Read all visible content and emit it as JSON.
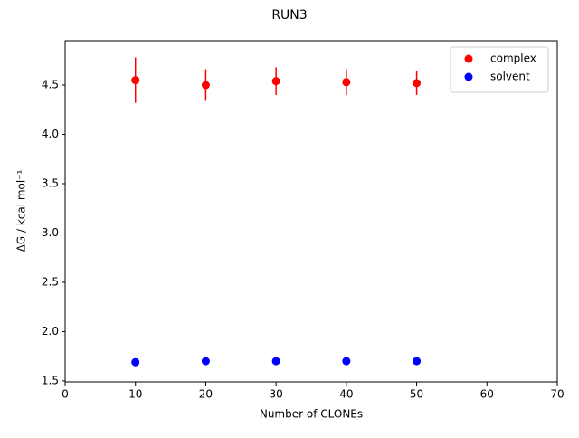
{
  "chart_data": {
    "type": "scatter",
    "title": "RUN3",
    "xlabel": "Number of CLONEs",
    "ylabel": "ΔG / kcal mol⁻¹",
    "xlim": [
      0,
      70
    ],
    "xticks": [
      0,
      10,
      20,
      30,
      40,
      50,
      60,
      70
    ],
    "ylim": [
      1.49,
      4.95
    ],
    "yticks": [
      1.5,
      {
        "value": 2,
        "label": "2.0"
      },
      2.5,
      {
        "value": 3,
        "label": "3.0"
      },
      3.5,
      {
        "value": 4,
        "label": "4.0"
      },
      4.5
    ],
    "legend": "upper right",
    "series": [
      {
        "name": "complex",
        "color": "#ff0000",
        "x": [
          10,
          20,
          30,
          40,
          50
        ],
        "values": [
          4.55,
          4.5,
          4.54,
          4.53,
          4.52
        ],
        "errors": [
          0.23,
          0.16,
          0.14,
          0.13,
          0.12
        ]
      },
      {
        "name": "solvent",
        "color": "#0000ff",
        "x": [
          10,
          20,
          30,
          40,
          50
        ],
        "values": [
          1.69,
          1.7,
          1.7,
          1.7,
          1.7
        ],
        "errors": [
          0.03,
          0.01,
          0.01,
          0.01,
          0.01
        ]
      }
    ]
  }
}
